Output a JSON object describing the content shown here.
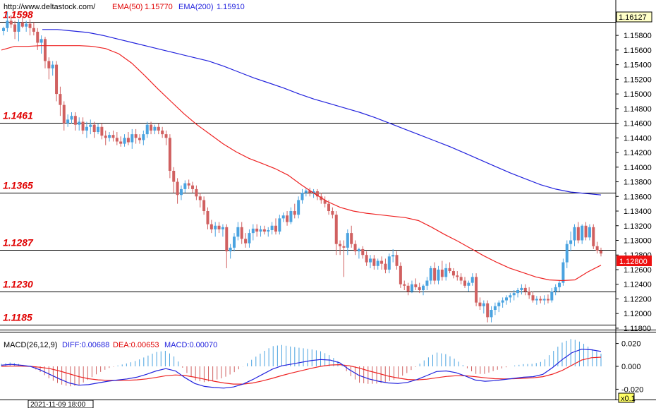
{
  "header": {
    "url": "http://www.deltastock.com/",
    "ema50_label": "EMA(50)",
    "ema50_value": "1.15770",
    "ema200_label": "EMA(200)",
    "ema200_value": "1.15910"
  },
  "price_panel": {
    "top_box_price": "1.16127",
    "current_price": "1.12800",
    "y_ticks": [
      "1.15800",
      "1.15600",
      "1.15400",
      "1.15200",
      "1.15000",
      "1.14800",
      "1.14600",
      "1.14400",
      "1.14200",
      "1.14000",
      "1.13800",
      "1.13600",
      "1.13400",
      "1.13200",
      "1.13000",
      "1.12800",
      "1.12600",
      "1.12400",
      "1.12200",
      "1.12000",
      "1.11800"
    ],
    "levels": [
      "1.1598",
      "1.1461",
      "1.1365",
      "1.1287",
      "1.1230",
      "1.1185"
    ]
  },
  "macd_panel": {
    "title": "MACD(26,12,9)",
    "diff_label": "DIFF:0.00688",
    "dea_label": "DEA:0.00653",
    "macd_label": "MACD:0.00070",
    "y_ticks": [
      "0.020",
      "0.000",
      "-0.020"
    ]
  },
  "footer": {
    "datetime": "2021-11-09 18:00",
    "zoom": "x0.1"
  },
  "colors": {
    "up": "#4aa3e0",
    "down": "#d06060",
    "ema50": "#ee2222",
    "ema200": "#2222dd",
    "level_label": "#e00000",
    "diff": "#2222dd",
    "dea": "#ee2222"
  },
  "chart_data": {
    "type": "candlestick",
    "y_range": [
      1.1178,
      1.1611
    ],
    "candles": [
      [
        1.1586,
        1.1592,
        1.158,
        1.159
      ],
      [
        1.159,
        1.1612,
        1.1585,
        1.16
      ],
      [
        1.16,
        1.1608,
        1.159,
        1.1595
      ],
      [
        1.1595,
        1.16,
        1.1575,
        1.1585
      ],
      [
        1.1585,
        1.1602,
        1.1572,
        1.1598
      ],
      [
        1.1598,
        1.1605,
        1.159,
        1.1592
      ],
      [
        1.1592,
        1.16,
        1.1585,
        1.1596
      ],
      [
        1.1596,
        1.1602,
        1.158,
        1.159
      ],
      [
        1.159,
        1.1598,
        1.158,
        1.1585
      ],
      [
        1.1585,
        1.159,
        1.156,
        1.157
      ],
      [
        1.157,
        1.158,
        1.1555,
        1.1575
      ],
      [
        1.1575,
        1.1578,
        1.1535,
        1.1545
      ],
      [
        1.1545,
        1.155,
        1.152,
        1.1535
      ],
      [
        1.1535,
        1.1545,
        1.1525,
        1.154
      ],
      [
        1.154,
        1.1545,
        1.149,
        1.15
      ],
      [
        1.15,
        1.151,
        1.147,
        1.1485
      ],
      [
        1.1485,
        1.149,
        1.145,
        1.146
      ],
      [
        1.146,
        1.1472,
        1.1455,
        1.1465
      ],
      [
        1.1465,
        1.1475,
        1.146,
        1.147
      ],
      [
        1.147,
        1.1475,
        1.145,
        1.1458
      ],
      [
        1.1458,
        1.1468,
        1.145,
        1.1462
      ],
      [
        1.1462,
        1.1468,
        1.1445,
        1.145
      ],
      [
        1.145,
        1.1462,
        1.144,
        1.1455
      ],
      [
        1.1455,
        1.1465,
        1.1445,
        1.1458
      ],
      [
        1.1458,
        1.1462,
        1.144,
        1.1448
      ],
      [
        1.1448,
        1.146,
        1.1445,
        1.1455
      ],
      [
        1.1455,
        1.146,
        1.1438,
        1.1443
      ],
      [
        1.1443,
        1.145,
        1.143,
        1.144
      ],
      [
        1.144,
        1.1448,
        1.1435,
        1.1444
      ],
      [
        1.1444,
        1.145,
        1.1435,
        1.144
      ],
      [
        1.144,
        1.1448,
        1.143,
        1.1435
      ],
      [
        1.1435,
        1.1442,
        1.1428,
        1.1432
      ],
      [
        1.1432,
        1.1445,
        1.1428,
        1.144
      ],
      [
        1.144,
        1.1448,
        1.143,
        1.1434
      ],
      [
        1.1434,
        1.1452,
        1.1425,
        1.1445
      ],
      [
        1.1445,
        1.1452,
        1.1432,
        1.144
      ],
      [
        1.144,
        1.1445,
        1.1432,
        1.1437
      ],
      [
        1.1437,
        1.145,
        1.143,
        1.1445
      ],
      [
        1.1445,
        1.1462,
        1.144,
        1.1458
      ],
      [
        1.1458,
        1.1462,
        1.1445,
        1.145
      ],
      [
        1.145,
        1.1458,
        1.1445,
        1.1455
      ],
      [
        1.1455,
        1.146,
        1.1445,
        1.145
      ],
      [
        1.145,
        1.1455,
        1.144,
        1.1445
      ],
      [
        1.1445,
        1.145,
        1.143,
        1.144
      ],
      [
        1.144,
        1.1445,
        1.1385,
        1.1395
      ],
      [
        1.1395,
        1.14,
        1.1365,
        1.138
      ],
      [
        1.138,
        1.1385,
        1.135,
        1.1362
      ],
      [
        1.1362,
        1.1375,
        1.1355,
        1.137
      ],
      [
        1.137,
        1.1382,
        1.1365,
        1.1378
      ],
      [
        1.1378,
        1.1383,
        1.137,
        1.1375
      ],
      [
        1.1375,
        1.138,
        1.1365,
        1.137
      ],
      [
        1.137,
        1.1375,
        1.1355,
        1.136
      ],
      [
        1.136,
        1.1365,
        1.1345,
        1.1355
      ],
      [
        1.1355,
        1.136,
        1.1335,
        1.134
      ],
      [
        1.134,
        1.1345,
        1.1315,
        1.1322
      ],
      [
        1.1322,
        1.1328,
        1.131,
        1.1315
      ],
      [
        1.1315,
        1.1325,
        1.1305,
        1.132
      ],
      [
        1.132,
        1.1325,
        1.131,
        1.1315
      ],
      [
        1.1315,
        1.1322,
        1.1305,
        1.1318
      ],
      [
        1.1318,
        1.1322,
        1.1262,
        1.1285
      ],
      [
        1.1285,
        1.1295,
        1.1275,
        1.129
      ],
      [
        1.129,
        1.131,
        1.1285,
        1.1305
      ],
      [
        1.1305,
        1.1325,
        1.13,
        1.1318
      ],
      [
        1.1318,
        1.1325,
        1.1295,
        1.1302
      ],
      [
        1.1302,
        1.131,
        1.129,
        1.1296
      ],
      [
        1.1296,
        1.1315,
        1.129,
        1.131
      ],
      [
        1.131,
        1.1322,
        1.13,
        1.1316
      ],
      [
        1.1316,
        1.1322,
        1.1305,
        1.1312
      ],
      [
        1.1312,
        1.132,
        1.1305,
        1.1315
      ],
      [
        1.1315,
        1.132,
        1.1308,
        1.1312
      ],
      [
        1.1312,
        1.1318,
        1.1305,
        1.1314
      ],
      [
        1.1314,
        1.1325,
        1.1308,
        1.132
      ],
      [
        1.132,
        1.133,
        1.1308,
        1.1312
      ],
      [
        1.1312,
        1.1335,
        1.1308,
        1.133
      ],
      [
        1.133,
        1.1338,
        1.1325,
        1.1334
      ],
      [
        1.1334,
        1.134,
        1.132,
        1.1325
      ],
      [
        1.1325,
        1.1345,
        1.1322,
        1.134
      ],
      [
        1.134,
        1.135,
        1.133,
        1.1335
      ],
      [
        1.1335,
        1.136,
        1.133,
        1.1355
      ],
      [
        1.1355,
        1.137,
        1.135,
        1.1365
      ],
      [
        1.1365,
        1.1372,
        1.136,
        1.1368
      ],
      [
        1.1368,
        1.1372,
        1.136,
        1.1365
      ],
      [
        1.1365,
        1.137,
        1.1358,
        1.1367
      ],
      [
        1.1367,
        1.137,
        1.1355,
        1.136
      ],
      [
        1.136,
        1.1365,
        1.135,
        1.1355
      ],
      [
        1.1355,
        1.136,
        1.1345,
        1.135
      ],
      [
        1.135,
        1.1355,
        1.1335,
        1.134
      ],
      [
        1.134,
        1.1345,
        1.133,
        1.1335
      ],
      [
        1.1335,
        1.134,
        1.128,
        1.1295
      ],
      [
        1.1295,
        1.13,
        1.128,
        1.1292
      ],
      [
        1.1292,
        1.13,
        1.125,
        1.129
      ],
      [
        1.129,
        1.1315,
        1.128,
        1.131
      ],
      [
        1.131,
        1.132,
        1.129,
        1.1295
      ],
      [
        1.1295,
        1.13,
        1.128,
        1.1285
      ],
      [
        1.1285,
        1.129,
        1.1275,
        1.1288
      ],
      [
        1.1288,
        1.1292,
        1.1275,
        1.128
      ],
      [
        1.128,
        1.1285,
        1.1265,
        1.127
      ],
      [
        1.127,
        1.128,
        1.1262,
        1.1275
      ],
      [
        1.1275,
        1.128,
        1.126,
        1.1265
      ],
      [
        1.1265,
        1.1275,
        1.126,
        1.1272
      ],
      [
        1.1272,
        1.1278,
        1.126,
        1.1268
      ],
      [
        1.1268,
        1.1275,
        1.1255,
        1.126
      ],
      [
        1.126,
        1.1282,
        1.1255,
        1.1278
      ],
      [
        1.1278,
        1.1288,
        1.127,
        1.128
      ],
      [
        1.128,
        1.1285,
        1.126,
        1.1265
      ],
      [
        1.1265,
        1.127,
        1.1235,
        1.124
      ],
      [
        1.124,
        1.1245,
        1.1232,
        1.1238
      ],
      [
        1.1238,
        1.1242,
        1.1225,
        1.123
      ],
      [
        1.123,
        1.1245,
        1.1228,
        1.124
      ],
      [
        1.124,
        1.1248,
        1.1232,
        1.1236
      ],
      [
        1.1236,
        1.1242,
        1.1228,
        1.1232
      ],
      [
        1.1232,
        1.124,
        1.1225,
        1.1238
      ],
      [
        1.1238,
        1.125,
        1.1232,
        1.1245
      ],
      [
        1.1245,
        1.1265,
        1.124,
        1.1262
      ],
      [
        1.1262,
        1.127,
        1.124,
        1.1245
      ],
      [
        1.1245,
        1.1265,
        1.124,
        1.126
      ],
      [
        1.126,
        1.1272,
        1.1245,
        1.125
      ],
      [
        1.125,
        1.1268,
        1.1245,
        1.1262
      ],
      [
        1.1262,
        1.127,
        1.1255,
        1.1258
      ],
      [
        1.1258,
        1.1262,
        1.1248,
        1.1252
      ],
      [
        1.1252,
        1.1258,
        1.1245,
        1.125
      ],
      [
        1.125,
        1.1255,
        1.124,
        1.1245
      ],
      [
        1.1245,
        1.125,
        1.1235,
        1.1238
      ],
      [
        1.1238,
        1.1245,
        1.123,
        1.1242
      ],
      [
        1.1242,
        1.1255,
        1.1238,
        1.125
      ],
      [
        1.125,
        1.1255,
        1.121,
        1.1215
      ],
      [
        1.1215,
        1.1222,
        1.1205,
        1.121
      ],
      [
        1.121,
        1.1218,
        1.12,
        1.1214
      ],
      [
        1.1214,
        1.1218,
        1.1188,
        1.1195
      ],
      [
        1.1195,
        1.121,
        1.1188,
        1.1205
      ],
      [
        1.1205,
        1.1215,
        1.1198,
        1.121
      ],
      [
        1.121,
        1.1218,
        1.1202,
        1.1215
      ],
      [
        1.1215,
        1.1222,
        1.1208,
        1.1218
      ],
      [
        1.1218,
        1.1225,
        1.1212,
        1.1222
      ],
      [
        1.1222,
        1.1228,
        1.1215,
        1.1225
      ],
      [
        1.1225,
        1.1232,
        1.1218,
        1.1228
      ],
      [
        1.1228,
        1.1235,
        1.1222,
        1.1232
      ],
      [
        1.1232,
        1.124,
        1.1226,
        1.1235
      ],
      [
        1.1235,
        1.124,
        1.1225,
        1.123
      ],
      [
        1.123,
        1.1236,
        1.122,
        1.1225
      ],
      [
        1.1225,
        1.123,
        1.1215,
        1.1218
      ],
      [
        1.1218,
        1.1224,
        1.1212,
        1.122
      ],
      [
        1.122,
        1.1224,
        1.1214,
        1.1218
      ],
      [
        1.1218,
        1.1225,
        1.1212,
        1.122
      ],
      [
        1.122,
        1.1226,
        1.1214,
        1.1218
      ],
      [
        1.1218,
        1.1235,
        1.1215,
        1.123
      ],
      [
        1.123,
        1.124,
        1.1225,
        1.1236
      ],
      [
        1.1236,
        1.1245,
        1.123,
        1.1242
      ],
      [
        1.1242,
        1.1275,
        1.1238,
        1.127
      ],
      [
        1.127,
        1.13,
        1.1262,
        1.1295
      ],
      [
        1.1295,
        1.1312,
        1.1285,
        1.13
      ],
      [
        1.13,
        1.1322,
        1.1292,
        1.1318
      ],
      [
        1.1318,
        1.1325,
        1.1296,
        1.13
      ],
      [
        1.13,
        1.1322,
        1.1295,
        1.132
      ],
      [
        1.132,
        1.1325,
        1.13,
        1.1304
      ],
      [
        1.1304,
        1.1322,
        1.13,
        1.1318
      ],
      [
        1.1318,
        1.1322,
        1.1288,
        1.1292
      ],
      [
        1.1292,
        1.1298,
        1.1282,
        1.1286
      ],
      [
        1.1286,
        1.129,
        1.1278,
        1.1282
      ]
    ],
    "ema50": [
      1.156,
      1.1565,
      1.1565,
      1.1566,
      1.1566,
      1.1566,
      1.1566,
      1.1565,
      1.1562,
      1.1555,
      1.1542,
      1.1525,
      1.1507,
      1.149,
      1.1473,
      1.1458,
      1.1445,
      1.1432,
      1.1421,
      1.1412,
      1.1405,
      1.1398,
      1.1389,
      1.1376,
      1.1364,
      1.1353,
      1.1345,
      1.134,
      1.1337,
      1.1335,
      1.1333,
      1.1331,
      1.1327,
      1.1318,
      1.1308,
      1.1299,
      1.1289,
      1.1279,
      1.127,
      1.1262,
      1.1256,
      1.125,
      1.1246,
      1.1245,
      1.1246,
      1.1257,
      1.1266
    ],
    "ema200": [
      1.1588,
      1.1588,
      1.1586,
      1.1584,
      1.158,
      1.1575,
      1.157,
      1.1565,
      1.156,
      1.1555,
      1.155,
      1.1545,
      1.1538,
      1.153,
      1.1522,
      1.1515,
      1.1508,
      1.15,
      1.1493,
      1.1487,
      1.1481,
      1.1475,
      1.1468,
      1.146,
      1.1452,
      1.1444,
      1.1436,
      1.1428,
      1.1419,
      1.141,
      1.1401,
      1.1392,
      1.1384,
      1.1376,
      1.137,
      1.1366,
      1.1364,
      1.1362
    ],
    "macd": {
      "y_range": [
        -0.029,
        0.029
      ],
      "diff": [
        0.001,
        0.0018,
        0.001,
        0.0,
        -0.003,
        -0.007,
        -0.011,
        -0.0145,
        -0.0165,
        -0.016,
        -0.0145,
        -0.013,
        -0.012,
        -0.011,
        -0.0095,
        -0.007,
        -0.004,
        -0.002,
        -0.004,
        -0.01,
        -0.015,
        -0.0175,
        -0.0185,
        -0.019,
        -0.018,
        -0.0155,
        -0.0115,
        -0.007,
        -0.0025,
        0.0005,
        0.002,
        0.0035,
        0.005,
        0.006,
        0.0055,
        0.003,
        -0.003,
        -0.008,
        -0.011,
        -0.013,
        -0.0145,
        -0.015,
        -0.014,
        -0.0115,
        -0.008,
        -0.0045,
        -0.004,
        -0.0055,
        -0.0085,
        -0.012,
        -0.013,
        -0.0125,
        -0.0115,
        -0.0105,
        -0.0095,
        -0.009,
        -0.007,
        -0.001,
        0.006,
        0.012,
        0.015,
        0.0145,
        0.013
      ],
      "dea": [
        0.0,
        0.0002,
        0.0002,
        0.0,
        -0.0008,
        -0.002,
        -0.004,
        -0.0065,
        -0.009,
        -0.0108,
        -0.0118,
        -0.0122,
        -0.0123,
        -0.0122,
        -0.0118,
        -0.011,
        -0.0097,
        -0.0082,
        -0.0075,
        -0.008,
        -0.0095,
        -0.0112,
        -0.013,
        -0.0145,
        -0.0155,
        -0.0155,
        -0.0145,
        -0.0127,
        -0.0105,
        -0.008,
        -0.0058,
        -0.0038,
        -0.0018,
        0.0,
        0.0012,
        0.0015,
        0.0005,
        -0.0015,
        -0.004,
        -0.0062,
        -0.0085,
        -0.0102,
        -0.0115,
        -0.0118,
        -0.0112,
        -0.01,
        -0.0088,
        -0.0082,
        -0.0082,
        -0.009,
        -0.01,
        -0.0108,
        -0.011,
        -0.0108,
        -0.0104,
        -0.01,
        -0.009,
        -0.0068,
        -0.0035,
        0.001,
        0.0055,
        0.0075,
        0.008
      ]
    }
  }
}
